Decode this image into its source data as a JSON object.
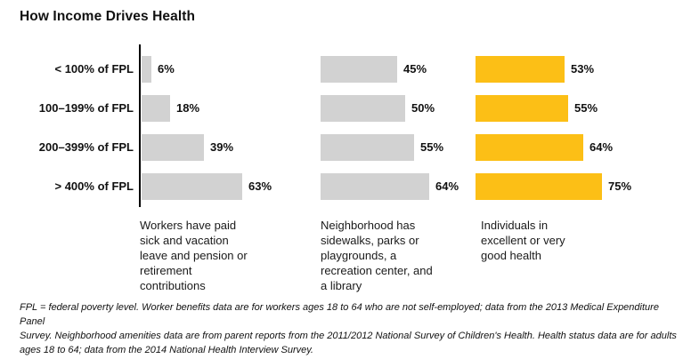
{
  "title": "How Income Drives Health",
  "chart_data": {
    "type": "bar",
    "orientation": "horizontal",
    "title": "How Income Drives Health",
    "categories": [
      "< 100% of FPL",
      "100–199% of FPL",
      "200–399% of FPL",
      "> 400% of FPL"
    ],
    "series": [
      {
        "name": "Workers have paid sick and vacation leave and pension or retirement contributions",
        "values": [
          6,
          18,
          39,
          63
        ],
        "color": "#D2D2D2",
        "caption_lines": [
          "Workers have paid",
          "sick and vacation",
          "leave and pension or",
          "retirement",
          "contributions"
        ]
      },
      {
        "name": "Neighborhood has sidewalks, parks or playgrounds, a recreation center, and a library",
        "values": [
          45,
          50,
          55,
          64
        ],
        "color": "#D2D2D2",
        "caption_lines": [
          "Neighborhood has",
          "sidewalks, parks or",
          "playgrounds, a",
          "recreation center, and",
          "a library"
        ]
      },
      {
        "name": "Individuals in excellent or very good health",
        "values": [
          53,
          55,
          64,
          75
        ],
        "color": "#FCBF16",
        "caption_lines": [
          "Individuals in",
          "excellent or very",
          "good health"
        ]
      }
    ],
    "value_suffix": "%",
    "xlim": [
      0,
      100
    ],
    "grid": false,
    "legend_position": "captions-below-each-group",
    "axis_line_color": "#000000"
  },
  "footnote_lines": [
    "FPL = federal poverty level. Worker benefits data are for workers ages 18 to 64 who are not self-employed; data from the 2013 Medical Expenditure Panel",
    "Survey. Neighborhood amenities data are from parent reports from the 2011/2012 National Survey of Children's Health. Health status data are for adults",
    "ages 18 to 64; data from the 2014 National Health Interview Survey."
  ]
}
